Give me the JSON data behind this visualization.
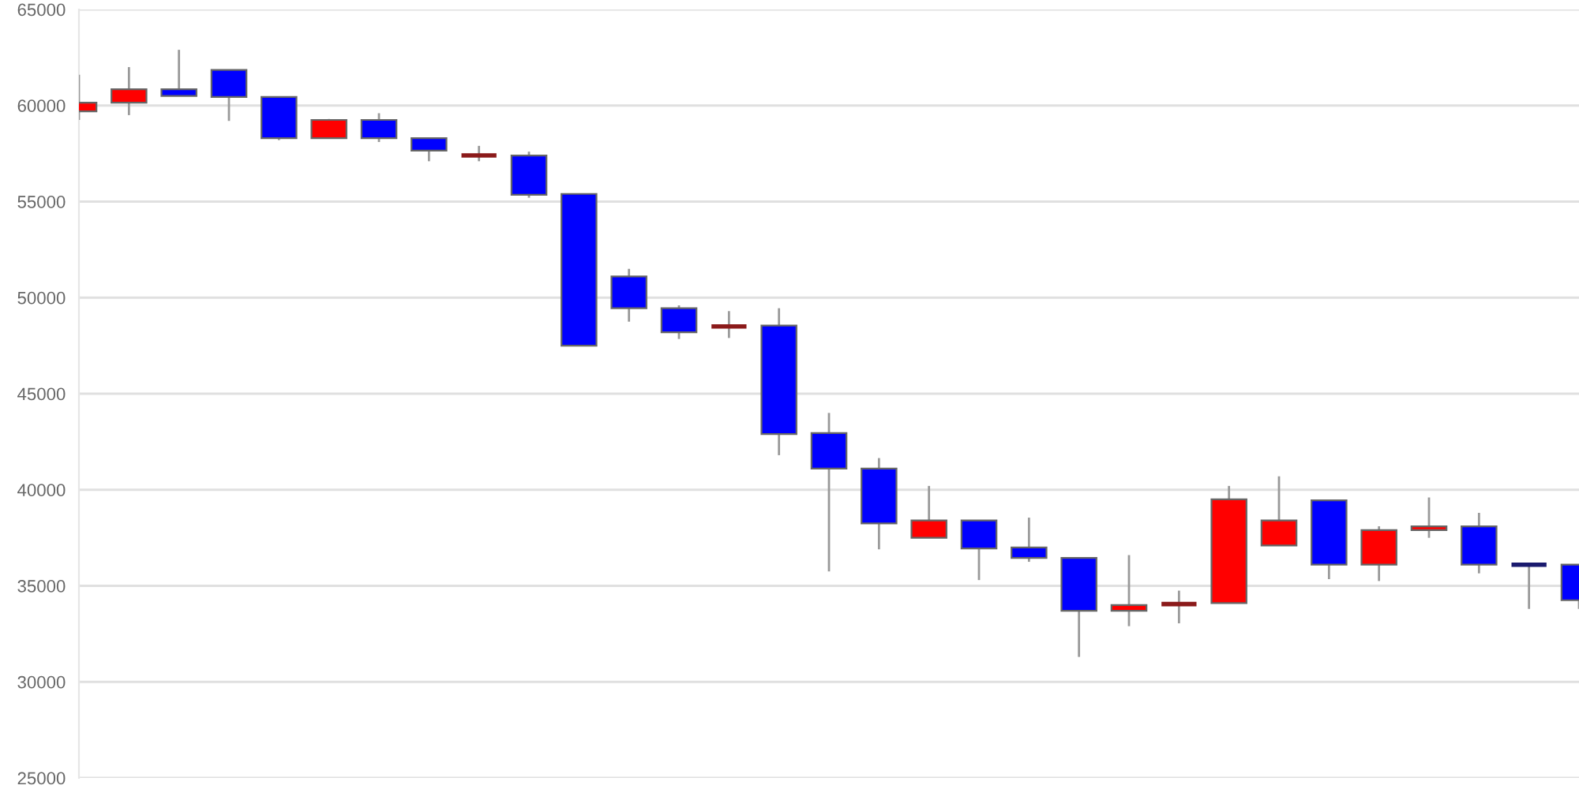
{
  "chart_data": {
    "type": "candlestick",
    "categories": [
      null,
      null,
      null,
      null,
      null,
      null,
      null,
      null,
      null,
      null,
      null,
      null,
      null,
      null,
      null,
      null,
      null,
      null,
      null,
      null,
      null,
      null,
      null,
      null,
      null,
      null,
      null,
      null,
      null,
      null,
      null
    ],
    "ohlc": [
      [
        59700,
        61600,
        59250,
        60150
      ],
      [
        60150,
        62000,
        59500,
        60850
      ],
      [
        60850,
        62900,
        60500,
        60500
      ],
      [
        61850,
        61850,
        59200,
        60450
      ],
      [
        60450,
        60450,
        58200,
        58300
      ],
      [
        58300,
        59300,
        58300,
        59250
      ],
      [
        59250,
        59600,
        58100,
        58300
      ],
      [
        58300,
        58300,
        57100,
        57650
      ],
      [
        57400,
        57900,
        57100,
        57400
      ],
      [
        57400,
        57600,
        55200,
        55350
      ],
      [
        55400,
        55400,
        47500,
        47500
      ],
      [
        51100,
        51500,
        48750,
        49450
      ],
      [
        49450,
        49600,
        47850,
        48200
      ],
      [
        48500,
        49300,
        47900,
        48500
      ],
      [
        48550,
        49450,
        41800,
        42900
      ],
      [
        42950,
        44000,
        35750,
        41100
      ],
      [
        41100,
        41650,
        36900,
        38250
      ],
      [
        37500,
        40200,
        37500,
        38400
      ],
      [
        38400,
        38400,
        35300,
        36950
      ],
      [
        37000,
        38550,
        36250,
        36450
      ],
      [
        36450,
        36450,
        31300,
        33700
      ],
      [
        33700,
        36600,
        32900,
        34000
      ],
      [
        34050,
        34750,
        33050,
        34050
      ],
      [
        34100,
        40200,
        34100,
        39500
      ],
      [
        37100,
        40700,
        37100,
        38400
      ],
      [
        39450,
        39450,
        35350,
        36100
      ],
      [
        36100,
        38100,
        35250,
        37900
      ],
      [
        37900,
        39600,
        37500,
        38100
      ],
      [
        38100,
        38800,
        35650,
        36100
      ],
      [
        36100,
        36100,
        33800,
        36100
      ],
      [
        36100,
        36100,
        33800,
        34250
      ]
    ],
    "colors": [
      "#ff0000",
      "#ff0000",
      "#0000ff",
      "#0000ff",
      "#0000ff",
      "#ff0000",
      "#0000ff",
      "#0000ff",
      "#8b1a1a",
      "#0000ff",
      "#0000ff",
      "#0000ff",
      "#0000ff",
      "#8b1a1a",
      "#0000ff",
      "#0000ff",
      "#0000ff",
      "#ff0000",
      "#0000ff",
      "#0000ff",
      "#0000ff",
      "#ff0000",
      "#8b1a1a",
      "#ff0000",
      "#ff0000",
      "#0000ff",
      "#ff0000",
      "#ff0000",
      "#0000ff",
      "#1a1a6e",
      "#0000ff"
    ],
    "ylim": [
      25000,
      65000
    ],
    "yticks": [
      25000,
      30000,
      35000,
      40000,
      45000,
      50000,
      55000,
      60000,
      65000
    ],
    "grid": "y",
    "tick_labels": "y"
  }
}
